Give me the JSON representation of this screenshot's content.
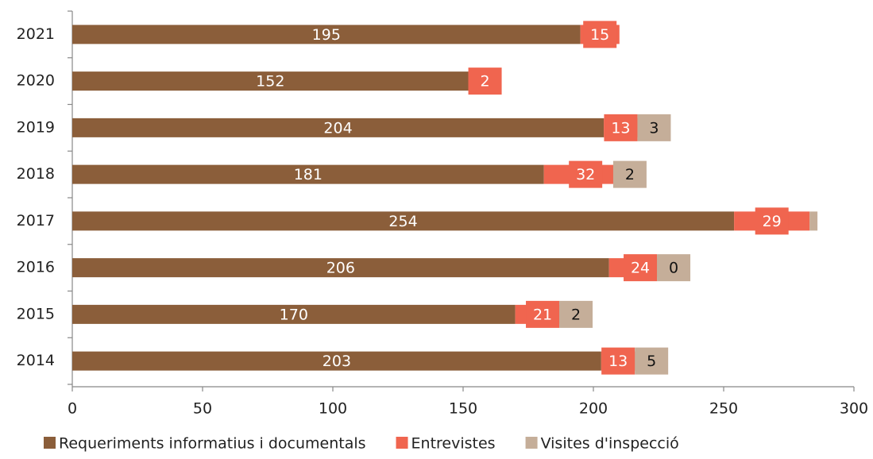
{
  "chart_data": {
    "type": "hbar-stacked",
    "categories": [
      "2021",
      "2020",
      "2019",
      "2018",
      "2017",
      "2016",
      "2015",
      "2014"
    ],
    "series": [
      {
        "name": "Requeriments informatius i documentals",
        "color": "#8b5e3a",
        "label_color": "#ffffff",
        "values": [
          195,
          152,
          204,
          181,
          254,
          206,
          170,
          203
        ]
      },
      {
        "name": "Entrevistes",
        "color": "#f0654f",
        "label_color": "#ffffff",
        "values": [
          15,
          2,
          13,
          32,
          29,
          24,
          21,
          13
        ]
      },
      {
        "name": "Visites d'inspecció",
        "color": "#c5ae99",
        "label_color": "#111111",
        "values": [
          null,
          null,
          3,
          2,
          3,
          0,
          2,
          5
        ],
        "value_labels": [
          null,
          null,
          "3",
          "2",
          null,
          "0",
          "2",
          "5"
        ]
      }
    ],
    "xlim": [
      0,
      300
    ],
    "xticks": [
      0,
      50,
      100,
      150,
      200,
      250,
      300
    ]
  }
}
